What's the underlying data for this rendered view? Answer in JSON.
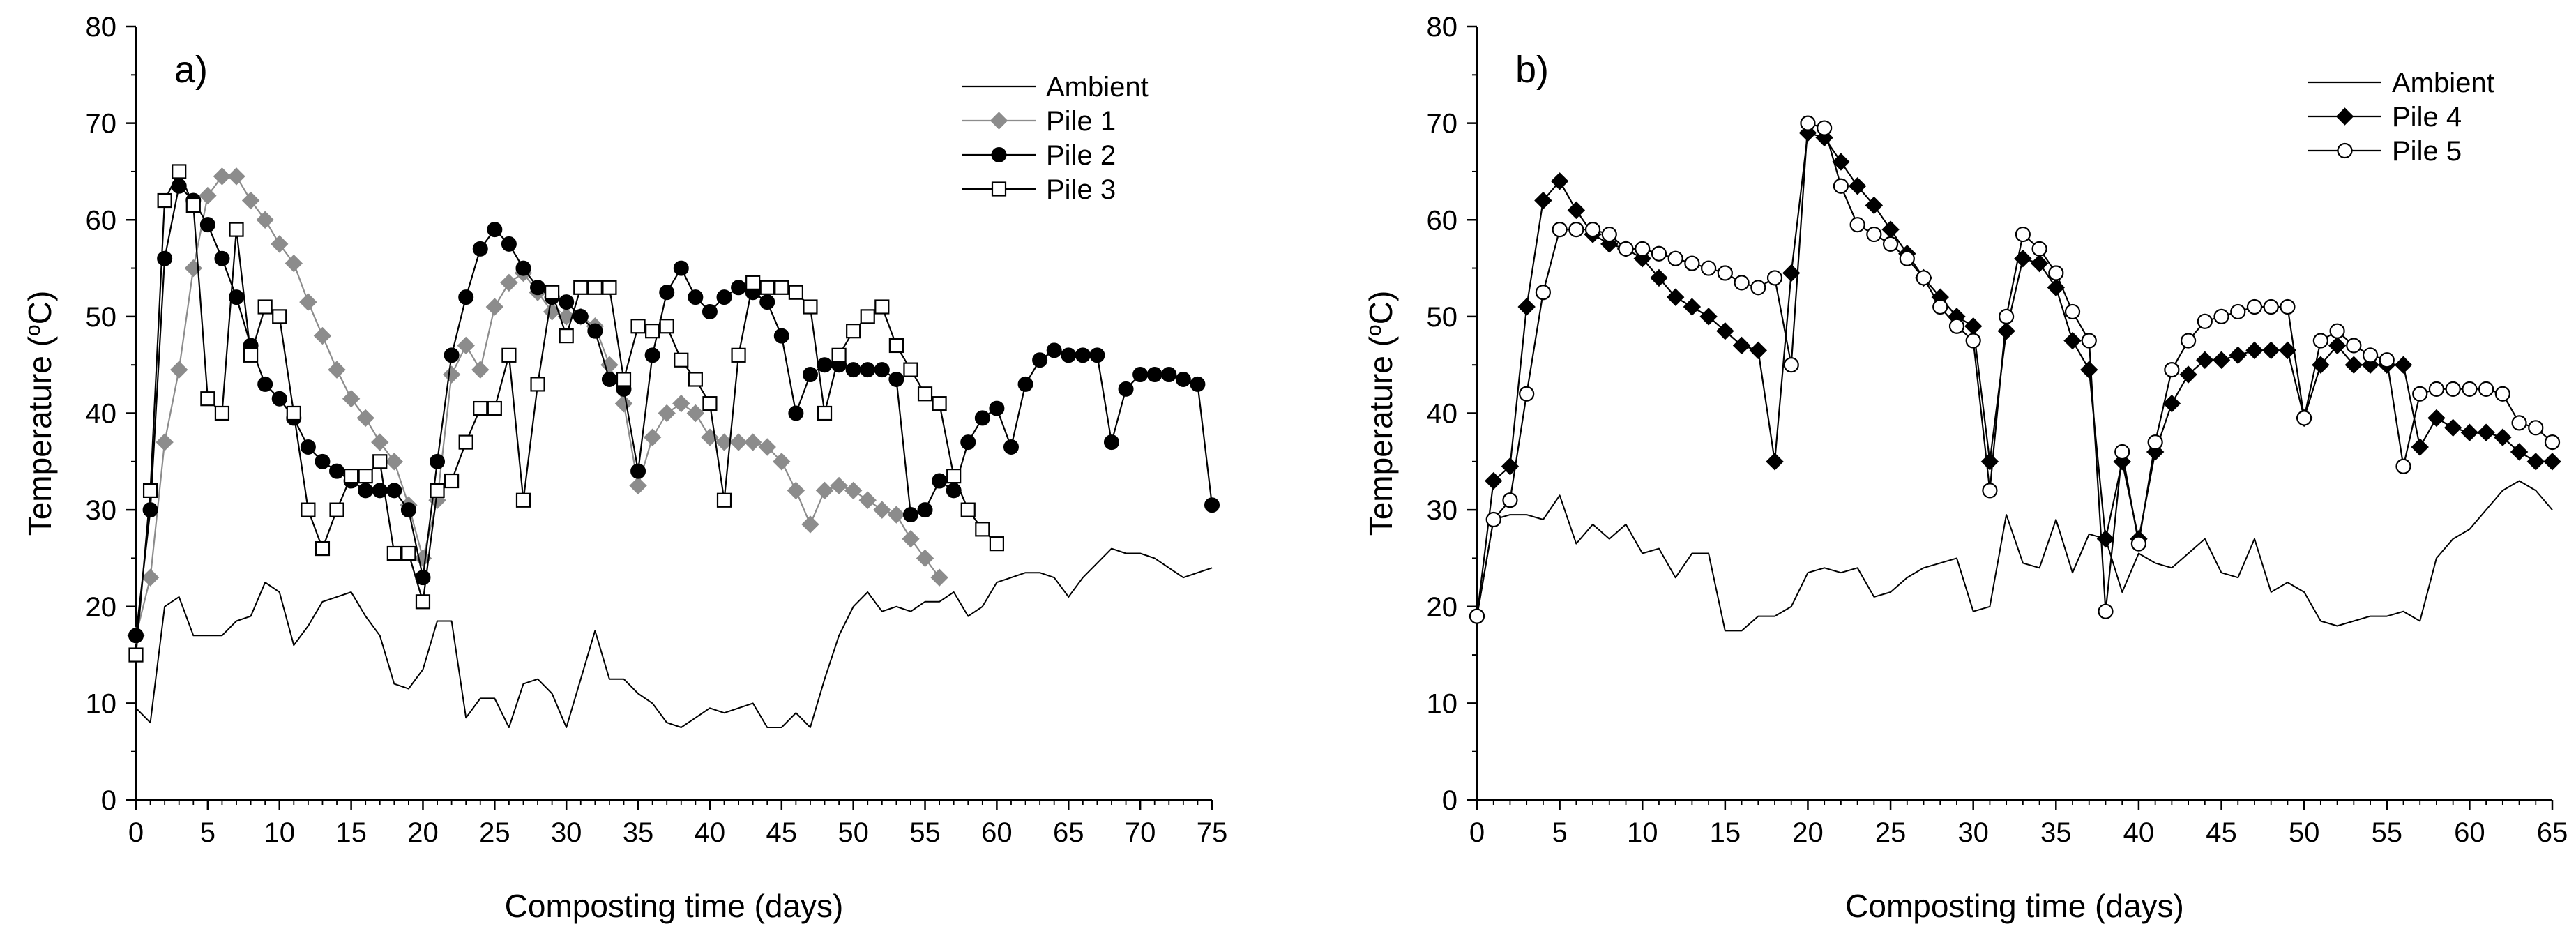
{
  "chart_data": [
    {
      "type": "line",
      "panel_label": "a)",
      "xlabel": "Composting time (days)",
      "ylabel_main": "Temperature (",
      "ylabel_sup": "o",
      "ylabel_end": "C)",
      "xlim": [
        0,
        75
      ],
      "ylim": [
        0,
        80
      ],
      "xticks": [
        0,
        5,
        10,
        15,
        20,
        25,
        30,
        35,
        40,
        45,
        50,
        55,
        60,
        65,
        70,
        75
      ],
      "yticks": [
        0,
        10,
        20,
        30,
        40,
        50,
        60,
        70,
        80
      ],
      "legend_position": "top-right",
      "series": [
        {
          "name": "Ambient",
          "marker": "none",
          "color": "#000000",
          "x": [
            0,
            1,
            2,
            3,
            4,
            5,
            6,
            7,
            8,
            9,
            10,
            11,
            12,
            13,
            14,
            15,
            16,
            17,
            18,
            19,
            20,
            21,
            22,
            23,
            24,
            25,
            26,
            27,
            28,
            29,
            30,
            31,
            32,
            33,
            34,
            35,
            36,
            37,
            38,
            39,
            40,
            41,
            42,
            43,
            44,
            45,
            46,
            47,
            48,
            49,
            50,
            51,
            52,
            53,
            54,
            55,
            56,
            57,
            58,
            59,
            60,
            61,
            62,
            63,
            64,
            65,
            66,
            67,
            68,
            69,
            70,
            71,
            72,
            73,
            74,
            75
          ],
          "y": [
            9.5,
            8,
            20,
            21,
            17,
            17,
            17,
            18.5,
            19,
            22.5,
            21.5,
            16,
            18,
            20.5,
            21,
            21.5,
            19,
            17,
            12,
            11.5,
            13.5,
            18.5,
            18.5,
            8.5,
            10.5,
            10.5,
            7.5,
            12,
            12.5,
            11,
            7.5,
            12.5,
            17.5,
            12.5,
            12.5,
            11,
            10,
            8,
            7.5,
            8.5,
            9.5,
            9,
            9.5,
            10,
            7.5,
            7.5,
            9,
            7.5,
            12.5,
            17,
            20,
            21.5,
            19.5,
            20,
            19.5,
            20.5,
            20.5,
            21.5,
            19,
            20,
            22.5,
            23,
            23.5,
            23.5,
            23,
            21,
            23,
            24.5,
            26,
            25.5,
            25.5,
            25,
            24,
            23,
            23.5,
            24
          ]
        },
        {
          "name": "Pile 1",
          "marker": "diamond-gray",
          "color": "#8c8c8c",
          "x": [
            0,
            1,
            2,
            3,
            4,
            5,
            6,
            7,
            8,
            9,
            10,
            11,
            12,
            13,
            14,
            15,
            16,
            17,
            18,
            19,
            20,
            21,
            22,
            23,
            24,
            25,
            26,
            27,
            28,
            29,
            30,
            31,
            32,
            33,
            34,
            35,
            36,
            37,
            38,
            39,
            40,
            41,
            42,
            43,
            44,
            45,
            46,
            47,
            48,
            49,
            50,
            51,
            52,
            53,
            54,
            55,
            56
          ],
          "y": [
            17,
            23,
            37,
            44.5,
            55,
            62.5,
            64.5,
            64.5,
            62,
            60,
            57.5,
            55.5,
            51.5,
            48,
            44.5,
            41.5,
            39.5,
            37,
            35,
            30.5,
            25,
            31,
            44,
            47,
            44.5,
            51,
            53.5,
            54.5,
            52.5,
            50.5,
            50,
            50,
            49,
            45,
            41,
            32.5,
            37.5,
            40,
            41,
            40,
            37.5,
            37,
            37,
            37,
            36.5,
            35,
            32,
            28.5,
            32,
            32.5,
            32,
            31,
            30,
            29.5,
            27,
            25,
            23
          ]
        },
        {
          "name": "Pile 2",
          "marker": "circle-filled",
          "color": "#000000",
          "x": [
            0,
            1,
            2,
            3,
            4,
            5,
            6,
            7,
            8,
            9,
            10,
            11,
            12,
            13,
            14,
            15,
            16,
            17,
            18,
            19,
            20,
            21,
            22,
            23,
            24,
            25,
            26,
            27,
            28,
            29,
            30,
            31,
            32,
            33,
            34,
            35,
            36,
            37,
            38,
            39,
            40,
            41,
            42,
            43,
            44,
            45,
            46,
            47,
            48,
            49,
            50,
            51,
            52,
            53,
            54,
            55,
            56,
            57,
            58,
            59,
            60,
            61,
            62,
            63,
            64,
            65,
            66,
            67,
            68,
            69,
            70,
            71,
            72,
            73,
            74,
            75
          ],
          "y": [
            17,
            30,
            56,
            63.5,
            62,
            59.5,
            56,
            52,
            47,
            43,
            41.5,
            39.5,
            36.5,
            35,
            34,
            33,
            32,
            32,
            32,
            30,
            23,
            35,
            46,
            52,
            57,
            59,
            57.5,
            55,
            53,
            52,
            51.5,
            50,
            48.5,
            43.5,
            42.5,
            34,
            46,
            52.5,
            55,
            52,
            50.5,
            52,
            53,
            52.5,
            51.5,
            48,
            40,
            44,
            45,
            45,
            44.5,
            44.5,
            44.5,
            43.5,
            29.5,
            30,
            33,
            32,
            37,
            39.5,
            40.5,
            36.5,
            43,
            45.5,
            46.5,
            46,
            46,
            46,
            37,
            42.5,
            44,
            44,
            44,
            43.5,
            43,
            30.5
          ]
        },
        {
          "name": "Pile 3",
          "marker": "square-open",
          "color": "#000000",
          "x": [
            0,
            1,
            2,
            3,
            4,
            5,
            6,
            7,
            8,
            9,
            10,
            11,
            12,
            13,
            14,
            15,
            16,
            17,
            18,
            19,
            20,
            21,
            22,
            23,
            24,
            25,
            26,
            27,
            28,
            29,
            30,
            31,
            32,
            33,
            34,
            35,
            36,
            37,
            38,
            39,
            40,
            41,
            42,
            43,
            44,
            45,
            46,
            47,
            48,
            49,
            50,
            51,
            52,
            53,
            54,
            55,
            56,
            57,
            58,
            59,
            60
          ],
          "y": [
            15,
            32,
            62,
            65,
            61.5,
            41.5,
            40,
            59,
            46,
            51,
            50,
            40,
            30,
            26,
            30,
            33.5,
            33.5,
            35,
            25.5,
            25.5,
            20.5,
            32,
            33,
            37,
            40.5,
            40.5,
            46,
            31,
            43,
            52.5,
            48,
            53,
            53,
            53,
            43.5,
            49,
            48.5,
            49,
            45.5,
            43.5,
            41,
            31,
            46,
            53.5,
            53,
            53,
            52.5,
            51,
            40,
            46,
            48.5,
            50,
            51,
            47,
            44.5,
            42,
            41,
            33.5,
            30,
            28,
            26.5
          ]
        }
      ]
    },
    {
      "type": "line",
      "panel_label": "b)",
      "xlabel": "Composting time (days)",
      "ylabel_main": "Temperature (",
      "ylabel_sup": "o",
      "ylabel_end": "C)",
      "xlim": [
        0,
        65
      ],
      "ylim": [
        0,
        80
      ],
      "xticks": [
        0,
        5,
        10,
        15,
        20,
        25,
        30,
        35,
        40,
        45,
        50,
        55,
        60,
        65
      ],
      "yticks": [
        0,
        10,
        20,
        30,
        40,
        50,
        60,
        70,
        80
      ],
      "legend_position": "top-right",
      "series": [
        {
          "name": "Ambient",
          "marker": "none",
          "color": "#000000",
          "x": [
            0,
            1,
            2,
            3,
            4,
            5,
            6,
            7,
            8,
            9,
            10,
            11,
            12,
            13,
            14,
            15,
            16,
            17,
            18,
            19,
            20,
            21,
            22,
            23,
            24,
            25,
            26,
            27,
            28,
            29,
            30,
            31,
            32,
            33,
            34,
            35,
            36,
            37,
            38,
            39,
            40,
            41,
            42,
            43,
            44,
            45,
            46,
            47,
            48,
            49,
            50,
            51,
            52,
            53,
            54,
            55,
            56,
            57,
            58,
            59,
            60,
            61,
            62,
            63,
            64,
            65
          ],
          "y": [
            19,
            29,
            29.5,
            29.5,
            29,
            31.5,
            26.5,
            28.5,
            27,
            28.5,
            25.5,
            26,
            23,
            25.5,
            25.5,
            17.5,
            17.5,
            19,
            19,
            20,
            23.5,
            24,
            23.5,
            24,
            21,
            21.5,
            23,
            24,
            24.5,
            25,
            19.5,
            20,
            29.5,
            24.5,
            24,
            29,
            23.5,
            27.5,
            27,
            21.5,
            25.5,
            24.5,
            24,
            25.5,
            27,
            23.5,
            23,
            27,
            21.5,
            22.5,
            21.5,
            18.5,
            18,
            18.5,
            19,
            19,
            19.5,
            18.5,
            25,
            27,
            28,
            30,
            32,
            33,
            32,
            30
          ]
        },
        {
          "name": "Pile 4",
          "marker": "diamond-black",
          "color": "#000000",
          "x": [
            0,
            1,
            2,
            3,
            4,
            5,
            6,
            7,
            8,
            9,
            10,
            11,
            12,
            13,
            14,
            15,
            16,
            17,
            18,
            19,
            20,
            21,
            22,
            23,
            24,
            25,
            26,
            27,
            28,
            29,
            30,
            31,
            32,
            33,
            34,
            35,
            36,
            37,
            38,
            39,
            40,
            41,
            42,
            43,
            44,
            45,
            46,
            47,
            48,
            49,
            50,
            51,
            52,
            53,
            54,
            55,
            56,
            57,
            58,
            59,
            60,
            61,
            62,
            63,
            64,
            65
          ],
          "y": [
            19,
            33,
            34.5,
            51,
            62,
            64,
            61,
            58.5,
            57.5,
            57,
            56,
            54,
            52,
            51,
            50,
            48.5,
            47,
            46.5,
            35,
            54.5,
            69,
            68.5,
            66,
            63.5,
            61.5,
            59,
            56.5,
            54,
            52,
            50,
            49,
            35,
            48.5,
            56,
            55.5,
            53,
            47.5,
            44.5,
            27,
            35,
            27,
            36,
            41,
            44,
            45.5,
            45.5,
            46,
            46.5,
            46.5,
            46.5,
            39.5,
            45,
            47,
            45,
            45,
            45,
            45,
            36.5,
            39.5,
            38.5,
            38,
            38,
            37.5,
            36,
            35,
            35
          ]
        },
        {
          "name": "Pile 5",
          "marker": "circle-open",
          "color": "#000000",
          "x": [
            0,
            1,
            2,
            3,
            4,
            5,
            6,
            7,
            8,
            9,
            10,
            11,
            12,
            13,
            14,
            15,
            16,
            17,
            18,
            19,
            20,
            21,
            22,
            23,
            24,
            25,
            26,
            27,
            28,
            29,
            30,
            31,
            32,
            33,
            34,
            35,
            36,
            37,
            38,
            39,
            40,
            41,
            42,
            43,
            44,
            45,
            46,
            47,
            48,
            49,
            50,
            51,
            52,
            53,
            54,
            55,
            56,
            57,
            58,
            59,
            60,
            61,
            62,
            63,
            64,
            65
          ],
          "y": [
            19,
            29,
            31,
            42,
            52.5,
            59,
            59,
            59,
            58.5,
            57,
            57,
            56.5,
            56,
            55.5,
            55,
            54.5,
            53.5,
            53,
            54,
            45,
            70,
            69.5,
            63.5,
            59.5,
            58.5,
            57.5,
            56,
            54,
            51,
            49,
            47.5,
            32,
            50,
            58.5,
            57,
            54.5,
            50.5,
            47.5,
            19.5,
            36,
            26.5,
            37,
            44.5,
            47.5,
            49.5,
            50,
            50.5,
            51,
            51,
            51,
            39.5,
            47.5,
            48.5,
            47,
            46,
            45.5,
            34.5,
            42,
            42.5,
            42.5,
            42.5,
            42.5,
            42,
            39,
            38.5,
            37
          ]
        }
      ]
    }
  ]
}
